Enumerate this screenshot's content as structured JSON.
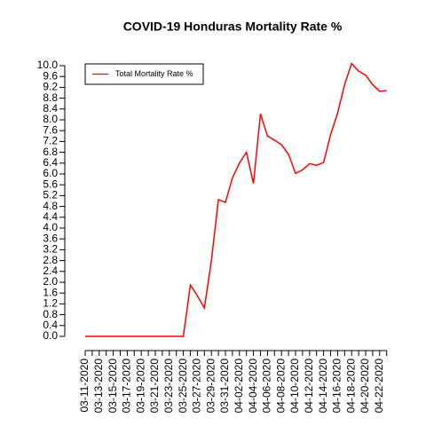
{
  "chart_data": {
    "type": "line",
    "title": "COVID-19 Honduras Mortality Rate %",
    "categories": [
      "03-11-2020",
      null,
      "03-13-2020",
      null,
      "03-15-2020",
      null,
      "03-17-2020",
      null,
      "03-19-2020",
      null,
      "03-21-2020",
      null,
      "03-23-2020",
      null,
      "03-25-2020",
      null,
      "03-27-2020",
      null,
      "03-29-2020",
      null,
      "03-31-2020",
      null,
      "04-02-2020",
      null,
      "04-04-2020",
      null,
      "04-06-2020",
      null,
      "04-08-2020",
      null,
      "04-10-2020",
      null,
      "04-12-2020",
      null,
      "04-14-2020",
      null,
      "04-16-2020",
      null,
      "04-18-2020",
      null,
      "04-20-2020",
      null,
      "04-22-2020",
      null
    ],
    "series": [
      {
        "name": "Total Mortality Rate %",
        "color": "#ff0000",
        "values": [
          0,
          0,
          0,
          0,
          0,
          0,
          0,
          0,
          0,
          0,
          0,
          0,
          0,
          0,
          0,
          1.9,
          1.5,
          1.05,
          2.8,
          5.05,
          4.95,
          5.85,
          6.4,
          6.8,
          5.65,
          8.22,
          7.4,
          7.25,
          7.08,
          6.72,
          6.02,
          6.15,
          6.38,
          6.32,
          6.42,
          7.45,
          8.25,
          9.3,
          10.08,
          9.8,
          9.65,
          9.3,
          9.05,
          9.08
        ]
      }
    ],
    "ylim": [
      0,
      10
    ],
    "yticks": [
      {
        "value": 0,
        "label": "0.0"
      },
      0.4,
      0.8,
      1.2,
      1.6,
      {
        "value": 2,
        "label": "2.0"
      },
      2.4,
      2.8,
      3.2,
      3.6,
      {
        "value": 4,
        "label": "4.0"
      },
      4.4,
      4.8,
      5.2,
      5.6,
      {
        "value": 6,
        "label": "6.0"
      },
      6.4,
      6.8,
      7.2,
      7.6,
      {
        "value": 8,
        "label": "8.0"
      },
      8.4,
      8.8,
      9.2,
      9.6,
      {
        "value": 10,
        "label": "10.0"
      }
    ],
    "legend": "top-left"
  }
}
